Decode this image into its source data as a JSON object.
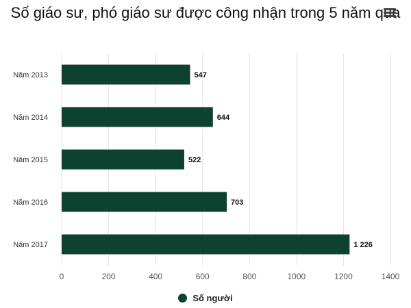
{
  "chart_data": {
    "type": "bar",
    "orientation": "horizontal",
    "title": "Số giáo sư, phó giáo sư được công nhận trong 5 năm qua",
    "categories": [
      "Năm 2013",
      "Năm 2014",
      "Năm 2015",
      "Năm 2016",
      "Năm 2017"
    ],
    "series": [
      {
        "name": "Số người",
        "values": [
          547,
          644,
          522,
          703,
          1226
        ],
        "value_labels": [
          "547",
          "644",
          "522",
          "703",
          "1 226"
        ],
        "color": "#0d4130"
      }
    ],
    "xlim": [
      0,
      1400
    ],
    "x_ticks": [
      0,
      200,
      400,
      600,
      800,
      1000,
      1200,
      1400
    ],
    "xlabel": "",
    "ylabel": "",
    "grid": true,
    "legend_position": "bottom-center"
  },
  "menu": {
    "icon": "hamburger-menu-icon"
  },
  "colors": {
    "bar": "#0d4130",
    "grid": "#e6e6e6",
    "axis_text": "#555555"
  }
}
